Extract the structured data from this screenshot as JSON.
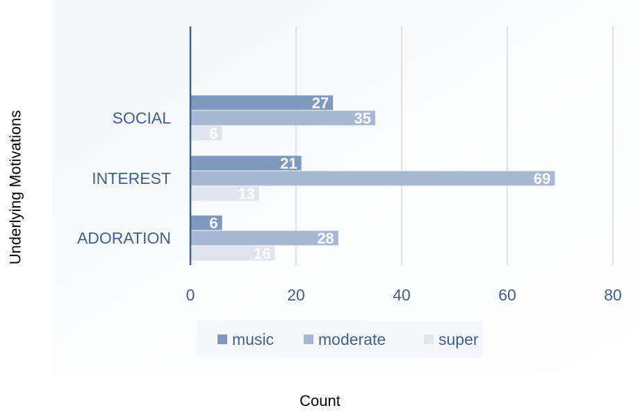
{
  "chart_data": {
    "type": "bar",
    "orientation": "horizontal",
    "categories": [
      "SOCIAL",
      "INTEREST",
      "ADORATION"
    ],
    "series": [
      {
        "name": "music",
        "values": [
          27,
          21,
          6
        ],
        "color": "#7f98be"
      },
      {
        "name": "moderate",
        "values": [
          35,
          69,
          28
        ],
        "color": "#a7b8d2"
      },
      {
        "name": "super",
        "values": [
          6,
          13,
          16
        ],
        "color": "#dfe5ee"
      }
    ],
    "xlabel": "Count",
    "ylabel": "Underlying Motivations",
    "xlim": [
      0,
      80
    ],
    "xticks": [
      "0",
      "20",
      "40",
      "60",
      "80"
    ],
    "grid": "vertical",
    "legend": "bottom",
    "data_labels": true,
    "colors": {
      "axis": "#3f5f8f",
      "tick_text": "#3f5f8f",
      "grid": "#c5d1e2",
      "data_label": "#ffffff"
    }
  }
}
